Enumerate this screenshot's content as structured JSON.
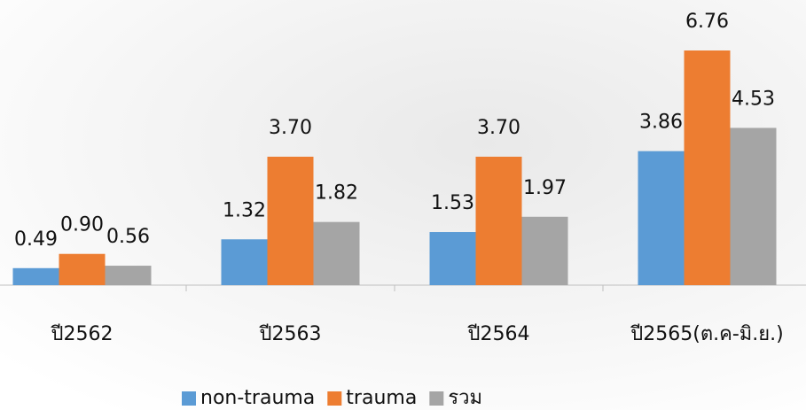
{
  "chart_data": {
    "type": "bar",
    "categories": [
      "ปี2562",
      "ปี2563",
      "ปี2564",
      "ปี2565(ต.ค-มิ.ย.)"
    ],
    "series": [
      {
        "name": "non-trauma",
        "color": "#5b9bd5",
        "values": [
          0.49,
          1.32,
          1.53,
          3.86
        ],
        "value_labels": [
          "0.49",
          "1.32",
          "1.53",
          "3.86"
        ]
      },
      {
        "name": "trauma",
        "color": "#ed7d31",
        "values": [
          0.9,
          3.7,
          3.7,
          6.76
        ],
        "value_labels": [
          "0.90",
          "3.70",
          "3.70",
          "6.76"
        ]
      },
      {
        "name": "รวม",
        "color": "#a5a5a5",
        "values": [
          0.56,
          1.82,
          1.97,
          4.53
        ],
        "value_labels": [
          "0.56",
          "1.82",
          "1.97",
          "4.53"
        ]
      }
    ],
    "ylim": [
      0,
      7.5
    ],
    "legend": "bottom"
  }
}
